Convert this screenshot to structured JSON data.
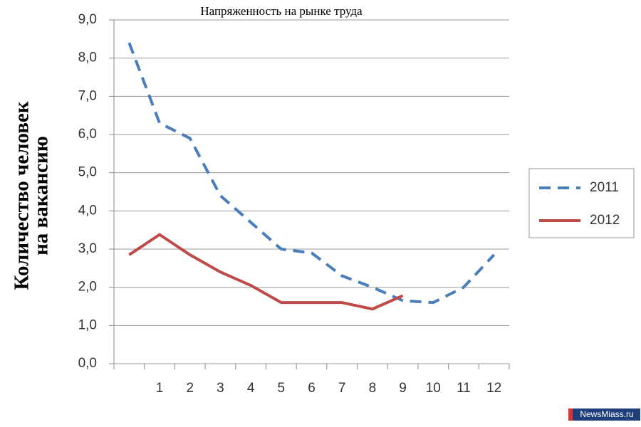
{
  "chart_data": {
    "type": "line",
    "title": "Напряженность на рынке труда",
    "y_label": [
      "Количество человек",
      "на вакансию"
    ],
    "categories": [
      null,
      "1",
      "2",
      "3",
      "4",
      "5",
      "6",
      "7",
      "8",
      "9",
      "10",
      "11",
      "12"
    ],
    "series": [
      {
        "name": "2011",
        "color": "#4a7ebb",
        "dash": true,
        "values": [
          8.4,
          6.3,
          5.9,
          4.4,
          3.7,
          3.0,
          2.9,
          2.3,
          2.0,
          1.65,
          1.6,
          2.0,
          2.85
        ]
      },
      {
        "name": "2012",
        "color": "#be4b48",
        "dash": false,
        "values": [
          2.85,
          3.38,
          2.85,
          2.4,
          2.05,
          1.6,
          1.6,
          1.6,
          1.43,
          1.78,
          null,
          null,
          null
        ]
      }
    ],
    "ylim": [
      0,
      9
    ],
    "yticks": [
      {
        "value": 0,
        "label": "0,0"
      },
      {
        "value": 1,
        "label": "1,0"
      },
      {
        "value": 2,
        "label": "2,0"
      },
      {
        "value": 3,
        "label": "3,0"
      },
      {
        "value": 4,
        "label": "4,0"
      },
      {
        "value": 5,
        "label": "5,0"
      },
      {
        "value": 6,
        "label": "6,0"
      },
      {
        "value": 7,
        "label": "7,0"
      },
      {
        "value": 8,
        "label": "8,0"
      },
      {
        "value": 9,
        "label": "9,0"
      }
    ],
    "grid": true,
    "legend": "right",
    "watermark": "NewsMiass.ru"
  }
}
